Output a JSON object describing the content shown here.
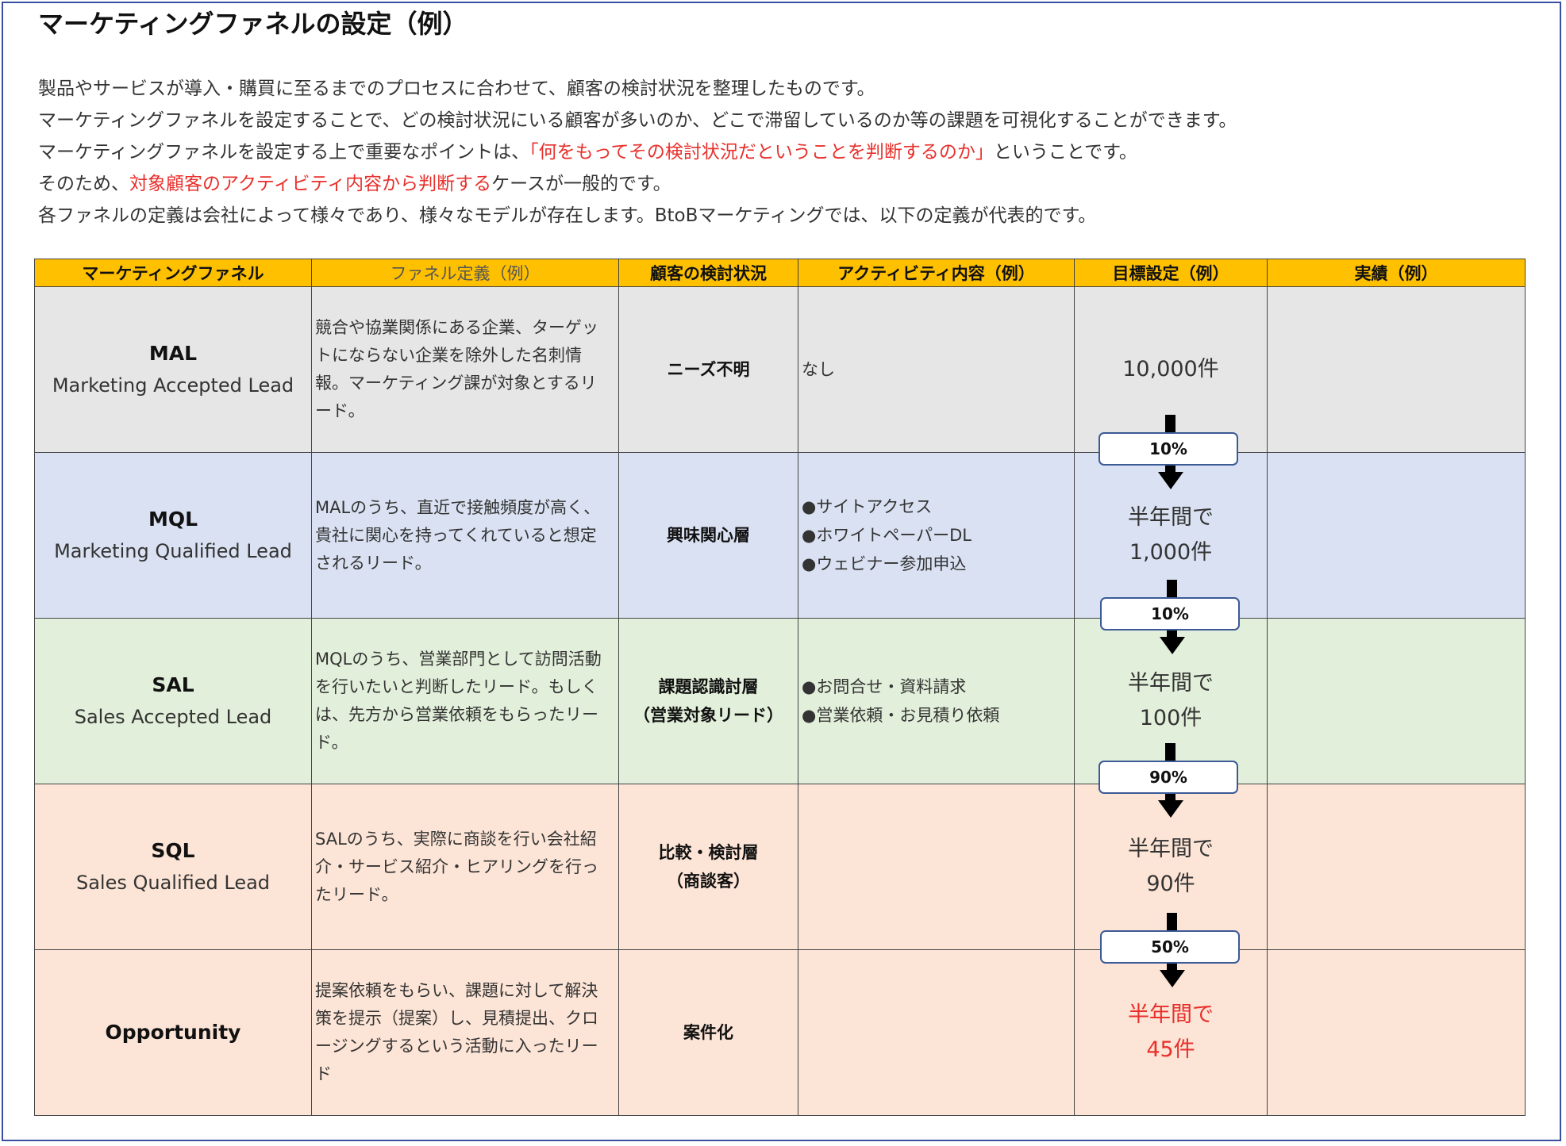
{
  "title": "マーケティングファネルの設定（例）",
  "intro": {
    "line1": "製品やサービスが導入・購買に至るまでのプロセスに合わせて、顧客の検討状況を整理したものです。",
    "line2": "マーケティングファネルを設定することで、どの検討状況にいる顧客が多いのか、どこで滞留しているのか等の課題を可視化することができます。",
    "line3_a": "マーケティングファネルを設定する上で重要なポイントは、",
    "line3_b": "「何をもってその検討状況だということを判断するのか」",
    "line3_c": "ということです。",
    "line4_a": "そのため、",
    "line4_b": "対象顧客のアクティビティ内容から判断する",
    "line4_c": "ケースが一般的です。",
    "line5": "各ファネルの定義は会社によって様々であり、様々なモデルが存在します。BtoBマーケティングでは、以下の定義が代表的です。"
  },
  "colors": {
    "header": "#ffc000",
    "accent_red": "#e8302c",
    "border": "#3b4fa0"
  },
  "table": {
    "headers": [
      "マーケティングファネル",
      "ファネル定義（例）",
      "顧客の検討状況",
      "アクティビティ内容（例）",
      "目標設定（例）",
      "実績（例）"
    ],
    "rows": [
      {
        "abbr": "MAL",
        "full": "Marketing Accepted Lead",
        "definition": "競合や協業関係にある企業、ターゲットにならない企業を除外した名刺情報。マーケティング課が対象とするリード。",
        "status1": "ニーズ不明",
        "status2": "",
        "activities": [
          "なし"
        ],
        "target1": "",
        "target2": "10,000件",
        "actual": ""
      },
      {
        "abbr": "MQL",
        "full": "Marketing Qualified Lead",
        "definition": "MALのうち、直近で接触頻度が高く、貴社に関心を持ってくれていると想定されるリード。",
        "status1": "興味関心層",
        "status2": "",
        "activities": [
          "●サイトアクセス",
          "●ホワイトペーパーDL",
          "●ウェビナー参加申込"
        ],
        "target1": "半年間で",
        "target2": "1,000件",
        "actual": ""
      },
      {
        "abbr": "SAL",
        "full": "Sales Accepted Lead",
        "definition": "MQLのうち、営業部門として訪問活動を行いたいと判断したリード。もしくは、先方から営業依頼をもらったリード。",
        "status1": "課題認識討層",
        "status2": "（営業対象リード）",
        "activities": [
          "●お問合せ・資料請求",
          "●営業依頼・お見積り依頼"
        ],
        "target1": "半年間で",
        "target2": "100件",
        "actual": ""
      },
      {
        "abbr": "SQL",
        "full": "Sales Qualified Lead",
        "definition": "SALのうち、実際に商談を行い会社紹介・サービス紹介・ヒアリングを行ったリード。",
        "status1": "比較・検討層",
        "status2": "（商談客）",
        "activities": [],
        "target1": "半年間で",
        "target2": "90件",
        "actual": ""
      },
      {
        "abbr": "Opportunity",
        "full": "",
        "definition": "提案依頼をもらい、課題に対して解決策を提示（提案）し、見積提出、クロージングするという活動に入ったリード",
        "status1": "案件化",
        "status2": "",
        "activities": [],
        "target1": "半年間で",
        "target2": "45件",
        "actual": ""
      }
    ],
    "conversion_rates": [
      "10%",
      "10%",
      "90%",
      "50%"
    ]
  }
}
